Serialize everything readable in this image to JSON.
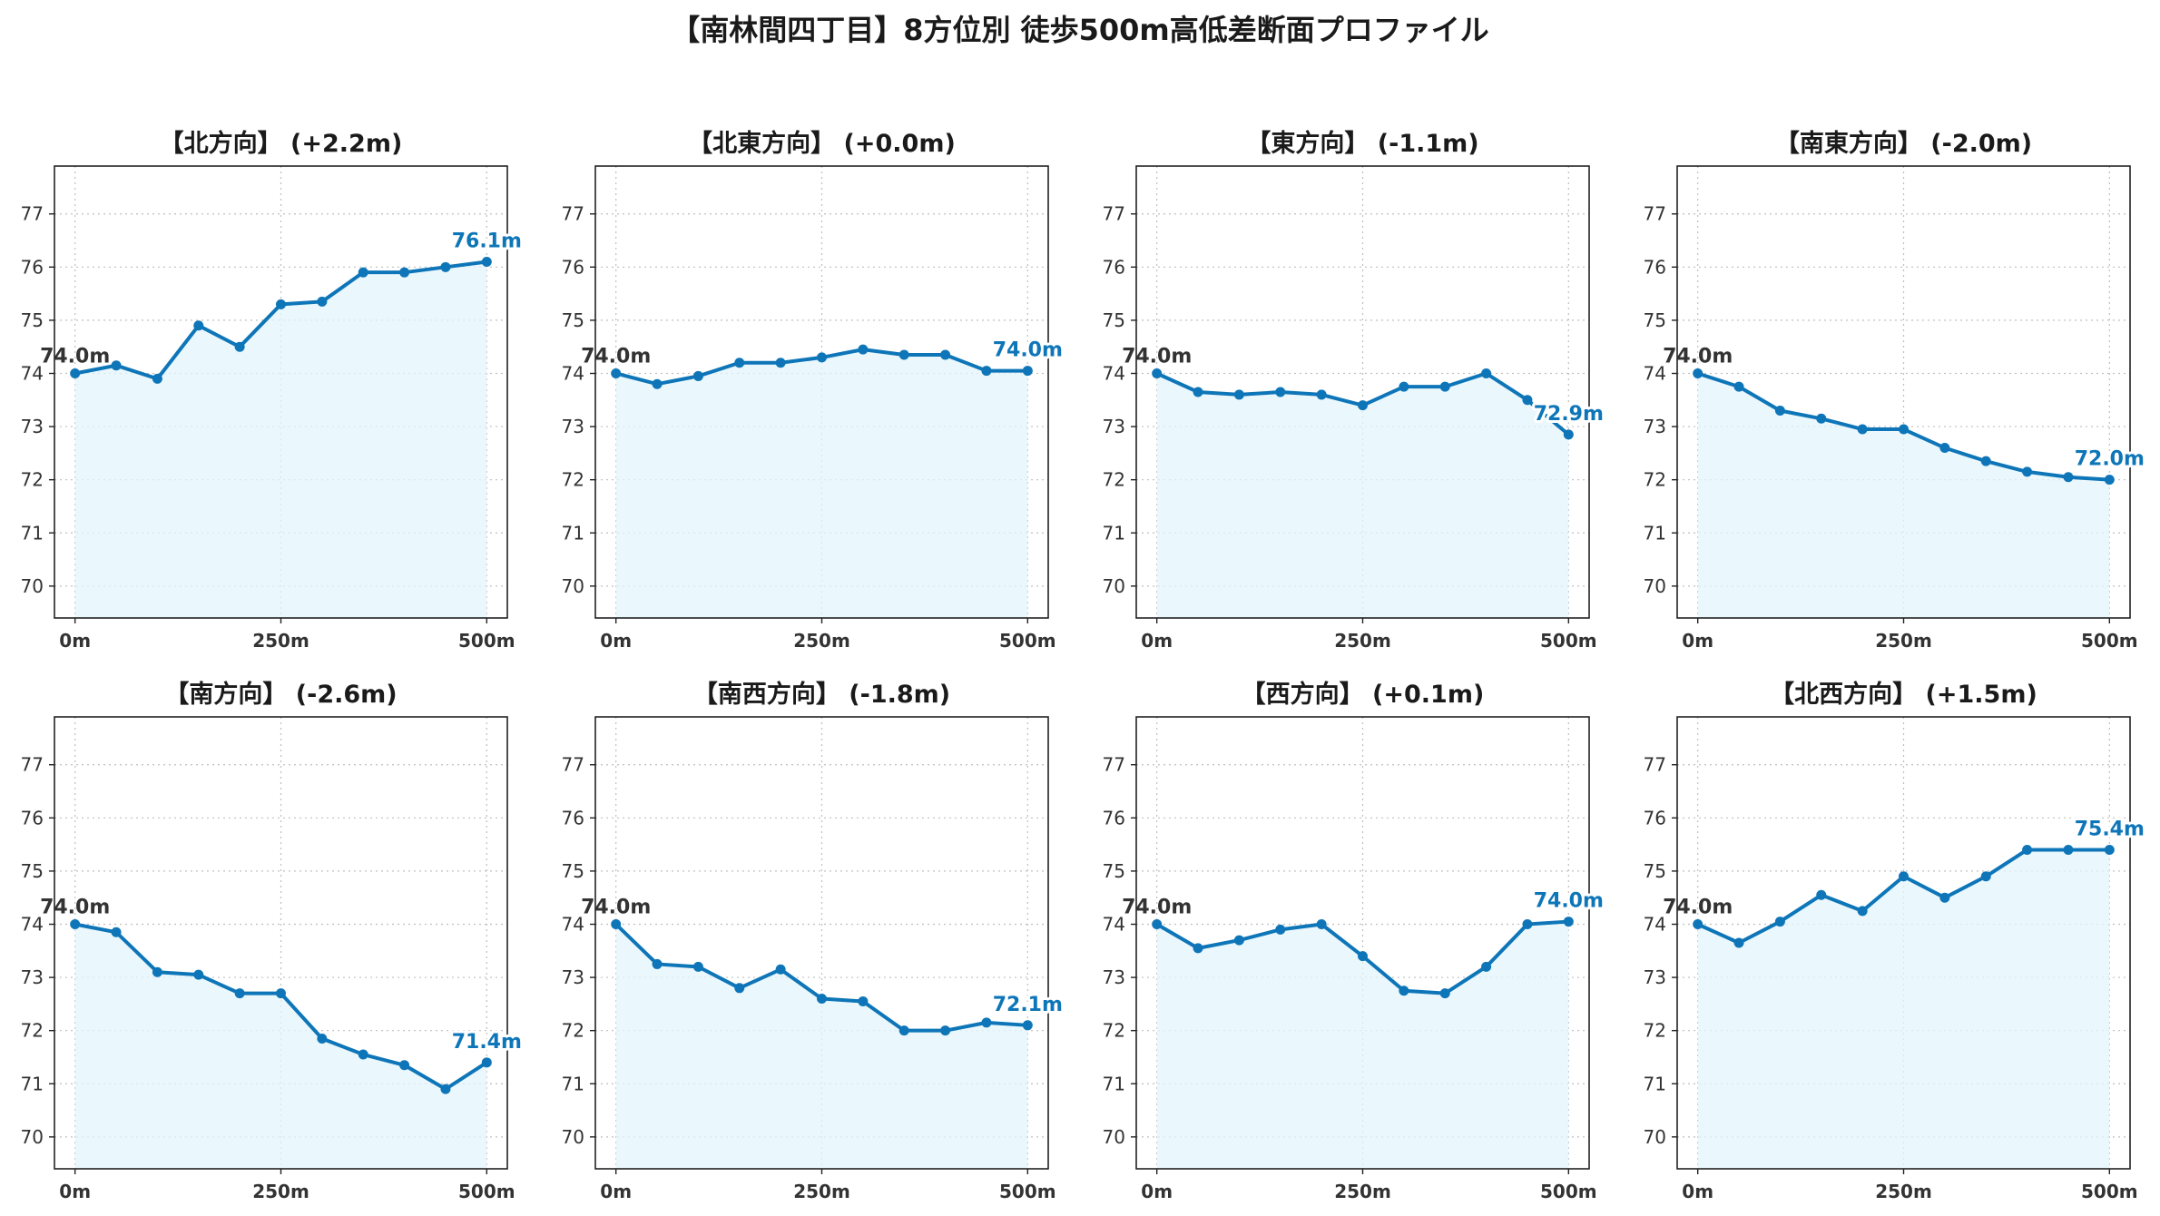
{
  "page_title": "【南林間四丁目】8方位別 徒歩500m高低差断面プロファイル",
  "colors": {
    "line": "#0e76b8",
    "fill": "#e3f4fb",
    "start_label": "#333333",
    "end_label": "#0e76b8"
  },
  "chart_data": [
    {
      "type": "area",
      "title": "【北方向】 (+2.2m)",
      "x": [
        0,
        50,
        100,
        150,
        200,
        250,
        300,
        350,
        400,
        450,
        500
      ],
      "values": [
        74.0,
        74.15,
        73.9,
        74.9,
        74.5,
        75.3,
        75.35,
        75.9,
        75.9,
        76.0,
        76.1
      ],
      "start_label": "74.0m",
      "end_label": "76.1m",
      "xticks": [
        "0m",
        "250m",
        "500m"
      ],
      "xtick_values": [
        0,
        250,
        500
      ],
      "yticks": [
        "70",
        "71",
        "72",
        "73",
        "74",
        "75",
        "76",
        "77"
      ],
      "ytick_values": [
        70,
        71,
        72,
        73,
        74,
        75,
        76,
        77
      ],
      "xlim": [
        -25,
        525
      ],
      "ylim": [
        69.4,
        77.9
      ],
      "grid": true
    },
    {
      "type": "area",
      "title": "【北東方向】 (+0.0m)",
      "x": [
        0,
        50,
        100,
        150,
        200,
        250,
        300,
        350,
        400,
        450,
        500
      ],
      "values": [
        74.0,
        73.8,
        73.95,
        74.2,
        74.2,
        74.3,
        74.45,
        74.35,
        74.35,
        74.05,
        74.05
      ],
      "start_label": "74.0m",
      "end_label": "74.0m",
      "xticks": [
        "0m",
        "250m",
        "500m"
      ],
      "xtick_values": [
        0,
        250,
        500
      ],
      "yticks": [
        "70",
        "71",
        "72",
        "73",
        "74",
        "75",
        "76",
        "77"
      ],
      "ytick_values": [
        70,
        71,
        72,
        73,
        74,
        75,
        76,
        77
      ],
      "xlim": [
        -25,
        525
      ],
      "ylim": [
        69.4,
        77.9
      ],
      "grid": true
    },
    {
      "type": "area",
      "title": "【東方向】 (-1.1m)",
      "x": [
        0,
        50,
        100,
        150,
        200,
        250,
        300,
        350,
        400,
        450,
        500
      ],
      "values": [
        74.0,
        73.65,
        73.6,
        73.65,
        73.6,
        73.4,
        73.75,
        73.75,
        74.0,
        73.5,
        72.85
      ],
      "start_label": "74.0m",
      "end_label": "72.9m",
      "xticks": [
        "0m",
        "250m",
        "500m"
      ],
      "xtick_values": [
        0,
        250,
        500
      ],
      "yticks": [
        "70",
        "71",
        "72",
        "73",
        "74",
        "75",
        "76",
        "77"
      ],
      "ytick_values": [
        70,
        71,
        72,
        73,
        74,
        75,
        76,
        77
      ],
      "xlim": [
        -25,
        525
      ],
      "ylim": [
        69.4,
        77.9
      ],
      "grid": true
    },
    {
      "type": "area",
      "title": "【南東方向】 (-2.0m)",
      "x": [
        0,
        50,
        100,
        150,
        200,
        250,
        300,
        350,
        400,
        450,
        500
      ],
      "values": [
        74.0,
        73.75,
        73.3,
        73.15,
        72.95,
        72.95,
        72.6,
        72.35,
        72.15,
        72.05,
        72.0
      ],
      "start_label": "74.0m",
      "end_label": "72.0m",
      "xticks": [
        "0m",
        "250m",
        "500m"
      ],
      "xtick_values": [
        0,
        250,
        500
      ],
      "yticks": [
        "70",
        "71",
        "72",
        "73",
        "74",
        "75",
        "76",
        "77"
      ],
      "ytick_values": [
        70,
        71,
        72,
        73,
        74,
        75,
        76,
        77
      ],
      "xlim": [
        -25,
        525
      ],
      "ylim": [
        69.4,
        77.9
      ],
      "grid": true
    },
    {
      "type": "area",
      "title": "【南方向】 (-2.6m)",
      "x": [
        0,
        50,
        100,
        150,
        200,
        250,
        300,
        350,
        400,
        450,
        500
      ],
      "values": [
        74.0,
        73.85,
        73.1,
        73.05,
        72.7,
        72.7,
        71.85,
        71.55,
        71.35,
        70.9,
        71.4
      ],
      "start_label": "74.0m",
      "end_label": "71.4m",
      "xticks": [
        "0m",
        "250m",
        "500m"
      ],
      "xtick_values": [
        0,
        250,
        500
      ],
      "yticks": [
        "70",
        "71",
        "72",
        "73",
        "74",
        "75",
        "76",
        "77"
      ],
      "ytick_values": [
        70,
        71,
        72,
        73,
        74,
        75,
        76,
        77
      ],
      "xlim": [
        -25,
        525
      ],
      "ylim": [
        69.4,
        77.9
      ],
      "grid": true
    },
    {
      "type": "area",
      "title": "【南西方向】 (-1.8m)",
      "x": [
        0,
        50,
        100,
        150,
        200,
        250,
        300,
        350,
        400,
        450,
        500
      ],
      "values": [
        74.0,
        73.25,
        73.2,
        72.8,
        73.15,
        72.6,
        72.55,
        72.0,
        72.0,
        72.15,
        72.1
      ],
      "start_label": "74.0m",
      "end_label": "72.1m",
      "xticks": [
        "0m",
        "250m",
        "500m"
      ],
      "xtick_values": [
        0,
        250,
        500
      ],
      "yticks": [
        "70",
        "71",
        "72",
        "73",
        "74",
        "75",
        "76",
        "77"
      ],
      "ytick_values": [
        70,
        71,
        72,
        73,
        74,
        75,
        76,
        77
      ],
      "xlim": [
        -25,
        525
      ],
      "ylim": [
        69.4,
        77.9
      ],
      "grid": true
    },
    {
      "type": "area",
      "title": "【西方向】 (+0.1m)",
      "x": [
        0,
        50,
        100,
        150,
        200,
        250,
        300,
        350,
        400,
        450,
        500
      ],
      "values": [
        74.0,
        73.55,
        73.7,
        73.9,
        74.0,
        73.4,
        72.75,
        72.7,
        73.2,
        74.0,
        74.05
      ],
      "start_label": "74.0m",
      "end_label": "74.0m",
      "xticks": [
        "0m",
        "250m",
        "500m"
      ],
      "xtick_values": [
        0,
        250,
        500
      ],
      "yticks": [
        "70",
        "71",
        "72",
        "73",
        "74",
        "75",
        "76",
        "77"
      ],
      "ytick_values": [
        70,
        71,
        72,
        73,
        74,
        75,
        76,
        77
      ],
      "xlim": [
        -25,
        525
      ],
      "ylim": [
        69.4,
        77.9
      ],
      "grid": true
    },
    {
      "type": "area",
      "title": "【北西方向】 (+1.5m)",
      "x": [
        0,
        50,
        100,
        150,
        200,
        250,
        300,
        350,
        400,
        450,
        500
      ],
      "values": [
        74.0,
        73.65,
        74.05,
        74.55,
        74.25,
        74.9,
        74.5,
        74.9,
        75.4,
        75.4,
        75.4
      ],
      "start_label": "74.0m",
      "end_label": "75.4m",
      "xticks": [
        "0m",
        "250m",
        "500m"
      ],
      "xtick_values": [
        0,
        250,
        500
      ],
      "yticks": [
        "70",
        "71",
        "72",
        "73",
        "74",
        "75",
        "76",
        "77"
      ],
      "ytick_values": [
        70,
        71,
        72,
        73,
        74,
        75,
        76,
        77
      ],
      "xlim": [
        -25,
        525
      ],
      "ylim": [
        69.4,
        77.9
      ],
      "grid": true
    }
  ]
}
